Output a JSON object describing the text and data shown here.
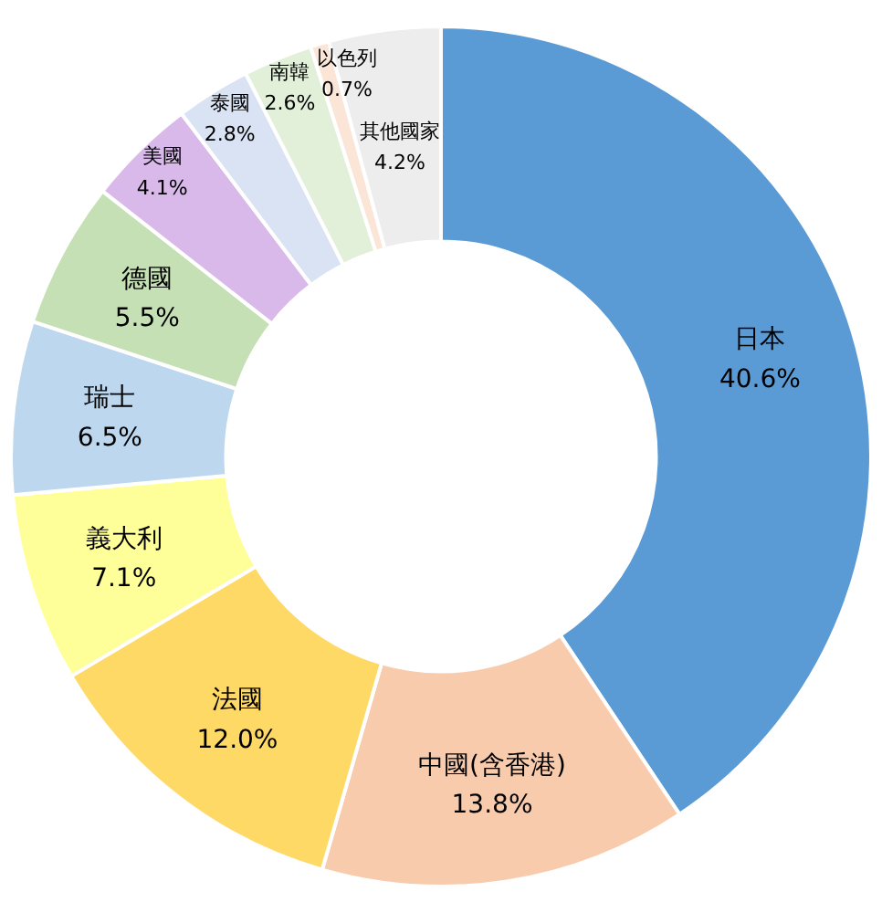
{
  "chart_data": {
    "type": "donut",
    "categories": [
      "日本",
      "中國(含香港)",
      "法國",
      "義大利",
      "瑞士",
      "德國",
      "美國",
      "泰國",
      "南韓",
      "以色列",
      "其他國家"
    ],
    "values": [
      40.6,
      13.8,
      12.0,
      7.1,
      6.5,
      5.5,
      4.1,
      2.8,
      2.6,
      0.7,
      4.2
    ],
    "value_labels": [
      "40.6%",
      "13.8%",
      "12.0%",
      "7.1%",
      "6.5%",
      "5.5%",
      "4.1%",
      "2.8%",
      "2.6%",
      "0.7%",
      "4.2%"
    ],
    "colors": [
      "#5b9bd5",
      "#f8cbad",
      "#ffd966",
      "#ffff99",
      "#bdd7ee",
      "#c5e0b4",
      "#d9b9e9",
      "#dae3f3",
      "#e2f0d9",
      "#fbe5d6",
      "#ededed"
    ],
    "legend": false
  }
}
